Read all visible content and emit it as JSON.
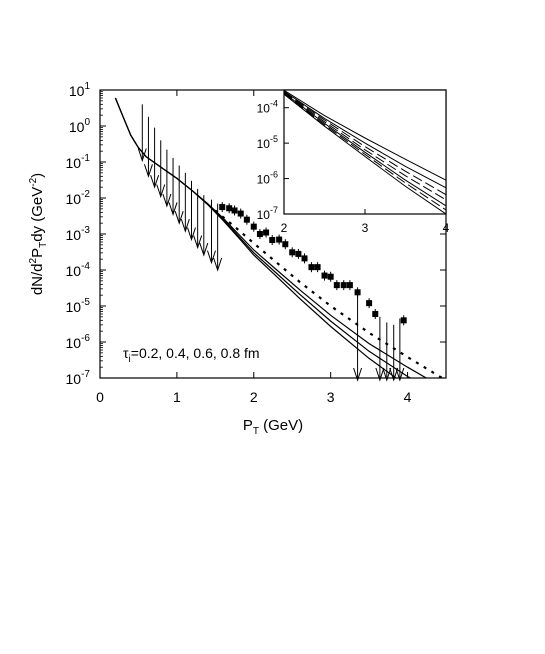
{
  "chart_data": [
    {
      "type": "scatter",
      "xlabel": "P",
      "xlabel_sub": "T",
      "xlabel_unit": " (GeV)",
      "ylabel": "dN/d",
      "ylabel_sup": "2",
      "ylabel_mid": "P",
      "ylabel_sub": "T",
      "ylabel_end": "dy (GeV",
      "ylabel_exp": "-2",
      "ylabel_close": ")",
      "xlim": [
        0,
        4.5
      ],
      "ylim_log10": [
        -7,
        1
      ],
      "y_scale": "log",
      "grid": false,
      "x_ticks": [
        {
          "value": 0,
          "label": "0"
        },
        {
          "value": 1,
          "label": "1"
        },
        {
          "value": 2,
          "label": "2"
        },
        {
          "value": 3,
          "label": "3"
        },
        {
          "value": 4,
          "label": "4"
        }
      ],
      "y_ticks": [
        {
          "exp": 1,
          "base": "10",
          "sup": "1"
        },
        {
          "exp": 0,
          "base": "10",
          "sup": "0"
        },
        {
          "exp": -1,
          "base": "10",
          "sup": "-1"
        },
        {
          "exp": -2,
          "base": "10",
          "sup": "-2"
        },
        {
          "exp": -3,
          "base": "10",
          "sup": "-3"
        },
        {
          "exp": -4,
          "base": "10",
          "sup": "-4"
        },
        {
          "exp": -5,
          "base": "10",
          "sup": "-5"
        },
        {
          "exp": -6,
          "base": "10",
          "sup": "-6"
        },
        {
          "exp": -7,
          "base": "10",
          "sup": "-7"
        }
      ],
      "annotation": {
        "symbol": "τ",
        "sub": "i",
        "text": "=0.2, 0.4, 0.6, 0.8 fm"
      },
      "series": [
        {
          "style": "solid",
          "points": [
            [
              0.2,
              6.0
            ],
            [
              0.3,
              1.8
            ],
            [
              0.4,
              0.55
            ],
            [
              0.5,
              0.25
            ],
            [
              0.6,
              0.14
            ],
            [
              0.8,
              0.07
            ],
            [
              1.0,
              0.035
            ],
            [
              1.2,
              0.016
            ],
            [
              1.4,
              0.007
            ],
            [
              1.6,
              0.0028
            ],
            [
              1.8,
              0.001
            ],
            [
              2.0,
              0.00036
            ],
            [
              2.3,
              0.0001
            ],
            [
              2.6,
              2.8e-05
            ],
            [
              3.0,
              5.5e-06
            ],
            [
              3.5,
              9e-07
            ],
            [
              4.0,
              2e-07
            ],
            [
              4.45,
              5.5e-08
            ]
          ]
        },
        {
          "style": "solid",
          "points": [
            [
              0.2,
              6.0
            ],
            [
              0.3,
              1.8
            ],
            [
              0.4,
              0.55
            ],
            [
              0.5,
              0.25
            ],
            [
              0.6,
              0.14
            ],
            [
              0.8,
              0.07
            ],
            [
              1.0,
              0.035
            ],
            [
              1.2,
              0.016
            ],
            [
              1.4,
              0.0068
            ],
            [
              1.6,
              0.0026
            ],
            [
              1.8,
              0.00088
            ],
            [
              2.0,
              0.0003
            ],
            [
              2.3,
              8e-05
            ],
            [
              2.6,
              2.1e-05
            ],
            [
              3.0,
              3.8e-06
            ],
            [
              3.5,
              5.5e-07
            ],
            [
              4.0,
              1.1e-07
            ],
            [
              4.3,
              5e-08
            ]
          ]
        },
        {
          "style": "solid",
          "points": [
            [
              0.2,
              6.0
            ],
            [
              0.3,
              1.8
            ],
            [
              0.4,
              0.55
            ],
            [
              0.5,
              0.25
            ],
            [
              0.6,
              0.14
            ],
            [
              0.8,
              0.07
            ],
            [
              1.0,
              0.035
            ],
            [
              1.2,
              0.0158
            ],
            [
              1.4,
              0.0066
            ],
            [
              1.6,
              0.0024
            ],
            [
              1.8,
              0.0008
            ],
            [
              2.0,
              0.00026
            ],
            [
              2.3,
              6.5e-05
            ],
            [
              2.6,
              1.6e-05
            ],
            [
              3.0,
              2.7e-06
            ],
            [
              3.5,
              3.5e-07
            ],
            [
              3.95,
              7e-08
            ]
          ]
        },
        {
          "style": "dotted",
          "points": [
            [
              1.5,
              0.0045
            ],
            [
              1.8,
              0.0013
            ],
            [
              2.0,
              0.00055
            ],
            [
              2.3,
              0.00016
            ],
            [
              2.6,
              4.6e-05
            ],
            [
              3.0,
              1e-05
            ],
            [
              3.5,
              1.8e-06
            ],
            [
              4.0,
              3.8e-07
            ],
            [
              4.45,
              1e-07
            ]
          ]
        }
      ],
      "data_points": [
        {
          "x": 1.27,
          "y": 0.0015,
          "limit": true
        },
        {
          "x": 1.35,
          "y": 0.0015,
          "limit": true
        },
        {
          "x": 1.45,
          "y": 0.0013,
          "limit": true
        },
        {
          "x": 1.53,
          "y": 0.0011,
          "limit": true
        },
        {
          "x": 1.59,
          "y": 0.0056
        },
        {
          "x": 1.68,
          "y": 0.0052
        },
        {
          "x": 1.75,
          "y": 0.0045
        },
        {
          "x": 1.83,
          "y": 0.0037
        },
        {
          "x": 1.91,
          "y": 0.0025
        },
        {
          "x": 2.0,
          "y": 0.0016
        },
        {
          "x": 2.08,
          "y": 0.001
        },
        {
          "x": 2.16,
          "y": 0.0011
        },
        {
          "x": 2.24,
          "y": 0.00068
        },
        {
          "x": 2.33,
          "y": 0.0007
        },
        {
          "x": 2.41,
          "y": 0.00052
        },
        {
          "x": 2.5,
          "y": 0.00031
        },
        {
          "x": 2.58,
          "y": 0.00028
        },
        {
          "x": 2.66,
          "y": 0.00021
        },
        {
          "x": 2.75,
          "y": 0.00012
        },
        {
          "x": 2.83,
          "y": 0.00012
        },
        {
          "x": 2.92,
          "y": 7e-05
        },
        {
          "x": 3.0,
          "y": 6.5e-05
        },
        {
          "x": 3.08,
          "y": 3.8e-05
        },
        {
          "x": 3.17,
          "y": 3.8e-05
        },
        {
          "x": 3.25,
          "y": 3.8e-05
        },
        {
          "x": 3.35,
          "y": 2.4e-05
        },
        {
          "x": 3.5,
          "y": 1.2e-05
        },
        {
          "x": 3.58,
          "y": 6e-06
        },
        {
          "x": 3.95,
          "y": 4e-06
        }
      ],
      "upper_limits": [
        {
          "x": 0.55,
          "y_top": 4.0,
          "y_tip": 0.11
        },
        {
          "x": 0.63,
          "y_top": 1.8,
          "y_tip": 0.04
        },
        {
          "x": 0.71,
          "y_top": 0.9,
          "y_tip": 0.02
        },
        {
          "x": 0.79,
          "y_top": 0.4,
          "y_tip": 0.011
        },
        {
          "x": 0.87,
          "y_top": 0.22,
          "y_tip": 0.006
        },
        {
          "x": 0.95,
          "y_top": 0.13,
          "y_tip": 0.0035
        },
        {
          "x": 1.03,
          "y_top": 0.08,
          "y_tip": 0.002
        },
        {
          "x": 1.11,
          "y_top": 0.05,
          "y_tip": 0.0012
        },
        {
          "x": 1.19,
          "y_top": 0.03,
          "y_tip": 0.0007
        },
        {
          "x": 1.27,
          "y_top": 0.018,
          "y_tip": 0.00042
        },
        {
          "x": 1.35,
          "y_top": 0.012,
          "y_tip": 0.00026
        },
        {
          "x": 1.45,
          "y_top": 0.009,
          "y_tip": 0.00016
        },
        {
          "x": 1.53,
          "y_top": 0.007,
          "y_tip": 0.0001
        },
        {
          "x": 3.35,
          "y_top": 2.2e-05,
          "y_tip": 6e-08
        },
        {
          "x": 3.64,
          "y_top": 5e-06,
          "y_tip": 6e-08
        },
        {
          "x": 3.73,
          "y_top": 3.5e-06,
          "y_tip": 6e-08
        },
        {
          "x": 3.82,
          "y_top": 3e-06,
          "y_tip": 6e-08
        },
        {
          "x": 3.9,
          "y_top": 4.5e-06,
          "y_tip": 6e-08
        }
      ]
    },
    {
      "type": "line",
      "role": "inset",
      "xlim": [
        2,
        4
      ],
      "ylim_log10": [
        -7,
        -3.5
      ],
      "y_scale": "log",
      "x_ticks": [
        {
          "value": 2,
          "label": "2"
        },
        {
          "value": 3,
          "label": "3"
        },
        {
          "value": 4,
          "label": "4"
        }
      ],
      "y_ticks": [
        {
          "exp": -4,
          "base": "10",
          "sup": "-4"
        },
        {
          "exp": -5,
          "base": "10",
          "sup": "-5"
        },
        {
          "exp": -6,
          "base": "10",
          "sup": "-6"
        },
        {
          "exp": -7,
          "base": "10",
          "sup": "-7"
        }
      ],
      "series": [
        {
          "style": "solid",
          "y_at": {
            "2.0": 0.00031,
            "2.5": 6e-05,
            "3.0": 1.4e-05,
            "3.5": 3.5e-06,
            "4.0": 9e-07
          }
        },
        {
          "style": "solid",
          "y_at": {
            "2.0": 0.00029,
            "2.5": 5e-05,
            "3.0": 1e-05,
            "3.5": 2.2e-06,
            "4.0": 5.5e-07
          }
        },
        {
          "style": "dashed",
          "y_at": {
            "2.0": 0.00028,
            "2.5": 4.5e-05,
            "3.0": 8e-06,
            "3.5": 1.6e-06,
            "4.0": 3.5e-07
          }
        },
        {
          "style": "dashed",
          "y_at": {
            "2.0": 0.00027,
            "2.5": 4e-05,
            "3.0": 6.5e-06,
            "3.5": 1.2e-06,
            "4.0": 2.5e-07
          }
        },
        {
          "style": "solid",
          "y_at": {
            "2.0": 0.00026,
            "2.5": 3.6e-05,
            "3.0": 5.5e-06,
            "3.5": 9e-07,
            "4.0": 1.7e-07
          }
        },
        {
          "style": "dashed",
          "y_at": {
            "2.0": 0.00025,
            "2.5": 3.3e-05,
            "3.0": 4.8e-06,
            "3.5": 7.5e-07,
            "4.0": 1.3e-07
          }
        },
        {
          "style": "solid",
          "y_at": {
            "2.0": 0.00024,
            "2.5": 3e-05,
            "3.0": 4.2e-06,
            "3.5": 6e-07,
            "4.0": 1e-07
          }
        }
      ]
    }
  ]
}
